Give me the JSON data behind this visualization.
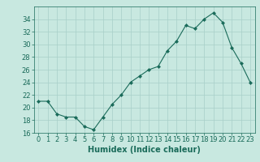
{
  "x": [
    0,
    1,
    2,
    3,
    4,
    5,
    6,
    7,
    8,
    9,
    10,
    11,
    12,
    13,
    14,
    15,
    16,
    17,
    18,
    19,
    20,
    21,
    22,
    23
  ],
  "y": [
    21,
    21,
    19,
    18.5,
    18.5,
    17,
    16.5,
    18.5,
    20.5,
    22,
    24,
    25,
    26,
    26.5,
    29,
    30.5,
    33,
    32.5,
    34,
    35,
    33.5,
    29.5,
    27,
    24
  ],
  "line_color": "#1a6b5a",
  "marker": "D",
  "marker_size": 2.0,
  "bg_color": "#c8e8e0",
  "grid_color": "#a8cfc8",
  "xlabel": "Humidex (Indice chaleur)",
  "xlabel_fontsize": 7,
  "tick_fontsize": 6,
  "ylim": [
    16,
    36
  ],
  "yticks": [
    16,
    18,
    20,
    22,
    24,
    26,
    28,
    30,
    32,
    34
  ],
  "xlim": [
    -0.5,
    23.5
  ],
  "xticks": [
    0,
    1,
    2,
    3,
    4,
    5,
    6,
    7,
    8,
    9,
    10,
    11,
    12,
    13,
    14,
    15,
    16,
    17,
    18,
    19,
    20,
    21,
    22,
    23
  ]
}
